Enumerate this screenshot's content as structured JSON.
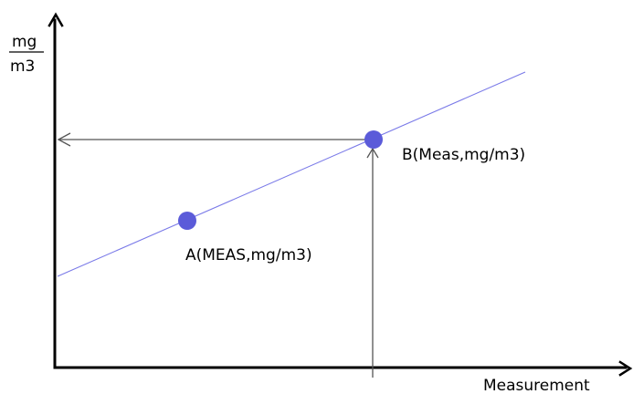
{
  "y_axis_unit": {
    "numerator": "mg",
    "denominator": "m3"
  },
  "x_axis_label": "Measurement",
  "points": {
    "a_label": "A(MEAS,mg/m3)",
    "b_label": "B(Meas,mg/m3)"
  },
  "colors": {
    "axis": "#000000",
    "calibration_line": "#7a7ae8",
    "point": "#5b5bd9",
    "guide_arrow": "#555555"
  }
}
